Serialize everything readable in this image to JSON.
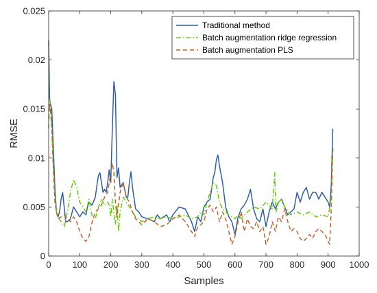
{
  "chart_data": {
    "type": "line",
    "xlabel": "Samples",
    "ylabel": "RMSE",
    "xlim": [
      0,
      1000
    ],
    "ylim": [
      0,
      0.025
    ],
    "xticks": [
      0,
      100,
      200,
      300,
      400,
      500,
      600,
      700,
      800,
      900,
      1000
    ],
    "xtick_labels": [
      "0",
      "100",
      "200",
      "300",
      "400",
      "500",
      "600",
      "700",
      "800",
      "900",
      "1000"
    ],
    "yticks": [
      0,
      0.005,
      0.01,
      0.015,
      0.02,
      0.025
    ],
    "ytick_labels": [
      "0",
      "0.005",
      "0.01",
      "0.015",
      "0.02",
      "0.025"
    ],
    "grid": false,
    "legend_position": "top-right",
    "series": [
      {
        "name": "Traditional method",
        "color": "#2e5fa4",
        "style": "solid",
        "points": [
          [
            0,
            0.022
          ],
          [
            3,
            0.016
          ],
          [
            6,
            0.0155
          ],
          [
            10,
            0.015
          ],
          [
            15,
            0.011
          ],
          [
            20,
            0.007
          ],
          [
            25,
            0.0045
          ],
          [
            30,
            0.004
          ],
          [
            35,
            0.0045
          ],
          [
            40,
            0.0058
          ],
          [
            45,
            0.0065
          ],
          [
            50,
            0.005
          ],
          [
            55,
            0.0035
          ],
          [
            60,
            0.0035
          ],
          [
            70,
            0.0038
          ],
          [
            80,
            0.005
          ],
          [
            90,
            0.0045
          ],
          [
            100,
            0.004
          ],
          [
            110,
            0.0045
          ],
          [
            120,
            0.0042
          ],
          [
            125,
            0.005
          ],
          [
            130,
            0.0055
          ],
          [
            140,
            0.0052
          ],
          [
            150,
            0.006
          ],
          [
            160,
            0.0082
          ],
          [
            165,
            0.0085
          ],
          [
            170,
            0.0075
          ],
          [
            175,
            0.0065
          ],
          [
            180,
            0.0068
          ],
          [
            185,
            0.0065
          ],
          [
            190,
            0.0075
          ],
          [
            195,
            0.0088
          ],
          [
            200,
            0.0075
          ],
          [
            205,
            0.013
          ],
          [
            210,
            0.0178
          ],
          [
            215,
            0.0165
          ],
          [
            220,
            0.008
          ],
          [
            225,
            0.009
          ],
          [
            230,
            0.007
          ],
          [
            240,
            0.0075
          ],
          [
            250,
            0.006
          ],
          [
            255,
            0.006
          ],
          [
            260,
            0.0075
          ],
          [
            265,
            0.0086
          ],
          [
            270,
            0.007
          ],
          [
            280,
            0.0048
          ],
          [
            290,
            0.0045
          ],
          [
            300,
            0.004
          ],
          [
            320,
            0.0038
          ],
          [
            340,
            0.0035
          ],
          [
            350,
            0.0042
          ],
          [
            360,
            0.0038
          ],
          [
            370,
            0.004
          ],
          [
            380,
            0.0042
          ],
          [
            390,
            0.0035
          ],
          [
            400,
            0.0042
          ],
          [
            420,
            0.005
          ],
          [
            440,
            0.0048
          ],
          [
            460,
            0.0035
          ],
          [
            470,
            0.0025
          ],
          [
            480,
            0.004
          ],
          [
            490,
            0.0035
          ],
          [
            500,
            0.005
          ],
          [
            510,
            0.0055
          ],
          [
            520,
            0.0058
          ],
          [
            530,
            0.008
          ],
          [
            535,
            0.0085
          ],
          [
            540,
            0.0098
          ],
          [
            545,
            0.0103
          ],
          [
            550,
            0.0092
          ],
          [
            560,
            0.0075
          ],
          [
            570,
            0.005
          ],
          [
            580,
            0.004
          ],
          [
            590,
            0.0035
          ],
          [
            600,
            0.0022
          ],
          [
            610,
            0.004
          ],
          [
            620,
            0.0048
          ],
          [
            630,
            0.0052
          ],
          [
            640,
            0.0058
          ],
          [
            650,
            0.0068
          ],
          [
            660,
            0.0048
          ],
          [
            670,
            0.0038
          ],
          [
            680,
            0.0035
          ],
          [
            690,
            0.0048
          ],
          [
            700,
            0.003
          ],
          [
            710,
            0.0045
          ],
          [
            720,
            0.0055
          ],
          [
            730,
            0.0048
          ],
          [
            740,
            0.0055
          ],
          [
            750,
            0.0058
          ],
          [
            760,
            0.005
          ],
          [
            770,
            0.0042
          ],
          [
            780,
            0.0045
          ],
          [
            790,
            0.0048
          ],
          [
            800,
            0.0065
          ],
          [
            810,
            0.0055
          ],
          [
            820,
            0.0065
          ],
          [
            830,
            0.007
          ],
          [
            840,
            0.0058
          ],
          [
            850,
            0.0065
          ],
          [
            860,
            0.0065
          ],
          [
            870,
            0.0058
          ],
          [
            880,
            0.0065
          ],
          [
            890,
            0.006
          ],
          [
            900,
            0.0055
          ],
          [
            905,
            0.005
          ],
          [
            910,
            0.0072
          ],
          [
            915,
            0.013
          ]
        ]
      },
      {
        "name": "Batch augmentation ridge regression",
        "color": "#66cc00",
        "style": "dashdot",
        "points": [
          [
            0,
            0.013
          ],
          [
            3,
            0.016
          ],
          [
            6,
            0.0155
          ],
          [
            10,
            0.013
          ],
          [
            15,
            0.009
          ],
          [
            20,
            0.006
          ],
          [
            25,
            0.0045
          ],
          [
            30,
            0.004
          ],
          [
            40,
            0.0035
          ],
          [
            50,
            0.003
          ],
          [
            60,
            0.0045
          ],
          [
            70,
            0.0065
          ],
          [
            80,
            0.0078
          ],
          [
            90,
            0.007
          ],
          [
            100,
            0.0055
          ],
          [
            110,
            0.005
          ],
          [
            120,
            0.0045
          ],
          [
            130,
            0.0058
          ],
          [
            140,
            0.004
          ],
          [
            150,
            0.0038
          ],
          [
            160,
            0.005
          ],
          [
            170,
            0.0058
          ],
          [
            180,
            0.0052
          ],
          [
            190,
            0.0055
          ],
          [
            195,
            0.0052
          ],
          [
            200,
            0.004
          ],
          [
            205,
            0.0058
          ],
          [
            210,
            0.0045
          ],
          [
            215,
            0.0032
          ],
          [
            220,
            0.0052
          ],
          [
            225,
            0.0025
          ],
          [
            230,
            0.0045
          ],
          [
            240,
            0.006
          ],
          [
            250,
            0.0055
          ],
          [
            260,
            0.005
          ],
          [
            270,
            0.0045
          ],
          [
            280,
            0.004
          ],
          [
            300,
            0.0035
          ],
          [
            320,
            0.0038
          ],
          [
            340,
            0.004
          ],
          [
            360,
            0.0038
          ],
          [
            380,
            0.004
          ],
          [
            400,
            0.0038
          ],
          [
            420,
            0.004
          ],
          [
            440,
            0.0042
          ],
          [
            460,
            0.0038
          ],
          [
            480,
            0.004
          ],
          [
            490,
            0.0045
          ],
          [
            500,
            0.0042
          ],
          [
            510,
            0.0055
          ],
          [
            520,
            0.0065
          ],
          [
            530,
            0.0075
          ],
          [
            540,
            0.0072
          ],
          [
            550,
            0.0055
          ],
          [
            560,
            0.0048
          ],
          [
            570,
            0.0045
          ],
          [
            580,
            0.0042
          ],
          [
            590,
            0.004
          ],
          [
            600,
            0.0038
          ],
          [
            610,
            0.0042
          ],
          [
            620,
            0.0038
          ],
          [
            640,
            0.0045
          ],
          [
            660,
            0.005
          ],
          [
            680,
            0.0048
          ],
          [
            700,
            0.0055
          ],
          [
            720,
            0.0048
          ],
          [
            728,
            0.0085
          ],
          [
            732,
            0.0045
          ],
          [
            740,
            0.0055
          ],
          [
            750,
            0.0058
          ],
          [
            760,
            0.005
          ],
          [
            780,
            0.0042
          ],
          [
            800,
            0.0045
          ],
          [
            820,
            0.0042
          ],
          [
            840,
            0.0045
          ],
          [
            860,
            0.004
          ],
          [
            880,
            0.0042
          ],
          [
            900,
            0.004
          ],
          [
            910,
            0.006
          ],
          [
            915,
            0.011
          ]
        ]
      },
      {
        "name": "Batch augmentation PLS",
        "color": "#c0652a",
        "style": "dashed",
        "points": [
          [
            0,
            0.014
          ],
          [
            3,
            0.0155
          ],
          [
            6,
            0.0148
          ],
          [
            10,
            0.013
          ],
          [
            15,
            0.009
          ],
          [
            20,
            0.0055
          ],
          [
            25,
            0.0045
          ],
          [
            30,
            0.0038
          ],
          [
            40,
            0.004
          ],
          [
            50,
            0.0042
          ],
          [
            60,
            0.0038
          ],
          [
            70,
            0.0035
          ],
          [
            80,
            0.004
          ],
          [
            90,
            0.0035
          ],
          [
            100,
            0.0025
          ],
          [
            110,
            0.0018
          ],
          [
            120,
            0.0015
          ],
          [
            130,
            0.002
          ],
          [
            140,
            0.0035
          ],
          [
            150,
            0.0045
          ],
          [
            160,
            0.0048
          ],
          [
            170,
            0.0052
          ],
          [
            180,
            0.006
          ],
          [
            190,
            0.0065
          ],
          [
            200,
            0.0085
          ],
          [
            205,
            0.0095
          ],
          [
            210,
            0.0085
          ],
          [
            215,
            0.0055
          ],
          [
            220,
            0.004
          ],
          [
            230,
            0.0065
          ],
          [
            240,
            0.0075
          ],
          [
            250,
            0.006
          ],
          [
            260,
            0.0055
          ],
          [
            270,
            0.0045
          ],
          [
            280,
            0.0038
          ],
          [
            300,
            0.0032
          ],
          [
            320,
            0.0038
          ],
          [
            340,
            0.0035
          ],
          [
            360,
            0.003
          ],
          [
            380,
            0.0032
          ],
          [
            400,
            0.0038
          ],
          [
            420,
            0.0042
          ],
          [
            440,
            0.0035
          ],
          [
            460,
            0.0025
          ],
          [
            470,
            0.002
          ],
          [
            480,
            0.003
          ],
          [
            490,
            0.0032
          ],
          [
            500,
            0.0035
          ],
          [
            510,
            0.0048
          ],
          [
            520,
            0.0052
          ],
          [
            530,
            0.0045
          ],
          [
            540,
            0.005
          ],
          [
            550,
            0.0035
          ],
          [
            560,
            0.0045
          ],
          [
            570,
            0.0038
          ],
          [
            580,
            0.0025
          ],
          [
            590,
            0.0012
          ],
          [
            600,
            0.002
          ],
          [
            610,
            0.0035
          ],
          [
            620,
            0.0045
          ],
          [
            630,
            0.0025
          ],
          [
            640,
            0.0038
          ],
          [
            650,
            0.003
          ],
          [
            660,
            0.0028
          ],
          [
            670,
            0.0035
          ],
          [
            680,
            0.0025
          ],
          [
            690,
            0.003
          ],
          [
            700,
            0.0012
          ],
          [
            710,
            0.002
          ],
          [
            720,
            0.0035
          ],
          [
            730,
            0.0025
          ],
          [
            740,
            0.004
          ],
          [
            750,
            0.0035
          ],
          [
            760,
            0.0048
          ],
          [
            770,
            0.0035
          ],
          [
            780,
            0.0025
          ],
          [
            790,
            0.0028
          ],
          [
            800,
            0.0025
          ],
          [
            810,
            0.0018
          ],
          [
            820,
            0.0015
          ],
          [
            830,
            0.0018
          ],
          [
            840,
            0.0022
          ],
          [
            850,
            0.0018
          ],
          [
            860,
            0.0025
          ],
          [
            870,
            0.0028
          ],
          [
            880,
            0.0025
          ],
          [
            890,
            0.0022
          ],
          [
            900,
            0.0015
          ],
          [
            905,
            0.0012
          ],
          [
            910,
            0.0048
          ],
          [
            915,
            0.011
          ]
        ]
      }
    ]
  }
}
